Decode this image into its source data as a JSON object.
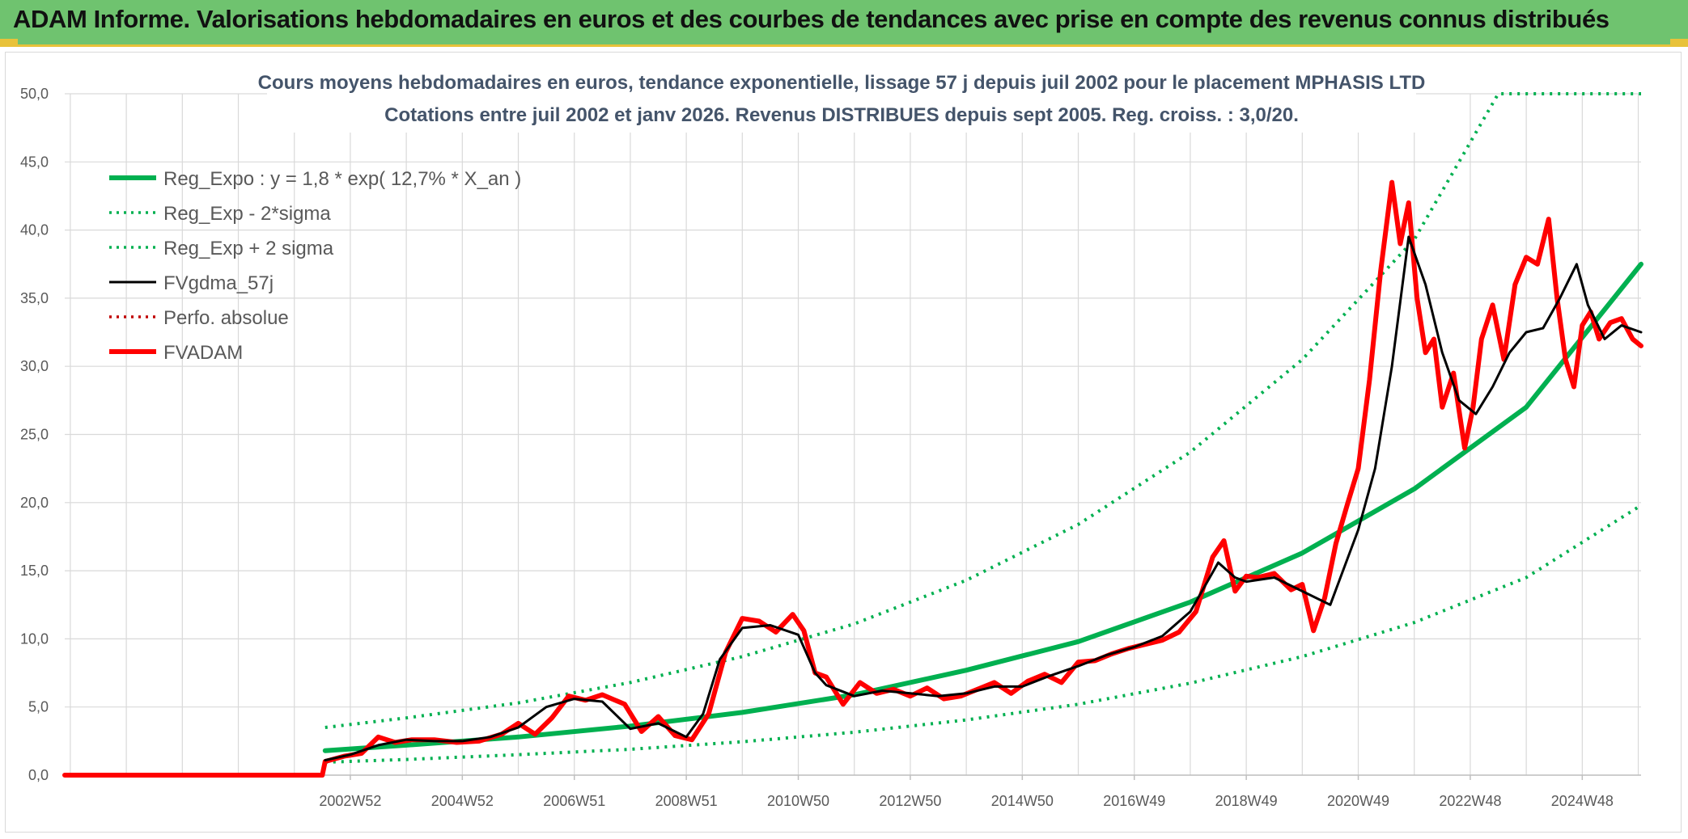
{
  "banner": {
    "title": "ADAM Informe. Valorisations hebdomadaires en euros et des courbes de tendances avec prise en compte des revenus connus distribués"
  },
  "colors": {
    "banner_bg": "#6fc36f",
    "banner_accent": "#e8c23a",
    "reg_expo": "#00b050",
    "sigma": "#00b050",
    "fvgdma": "#000000",
    "perfo": "#c00000",
    "fvadam": "#ff0000",
    "grid": "#d9d9d9"
  },
  "chart_data": {
    "type": "line",
    "title": "Cours moyens hebdomadaires en euros, tendance exponentielle, lissage 57 j depuis juil 2002 pour le placement MPHASIS LTD",
    "subtitle": "Cotations entre juil 2002 et janv 2026. Revenus DISTRIBUES depuis sept 2005. Reg. croiss. : 3,0/20.",
    "xlabel": "",
    "ylabel": "",
    "xlim": [
      1997.9,
      2026.05
    ],
    "ylim": [
      0,
      50
    ],
    "y_ticks": [
      "0,0",
      "5,0",
      "10,0",
      "15,0",
      "20,0",
      "25,0",
      "30,0",
      "35,0",
      "40,0",
      "45,0",
      "50,0"
    ],
    "x_ticks": [
      {
        "label": "2002W52",
        "x": 2003.0
      },
      {
        "label": "2004W52",
        "x": 2005.0
      },
      {
        "label": "2006W51",
        "x": 2007.0
      },
      {
        "label": "2008W51",
        "x": 2009.0
      },
      {
        "label": "2010W50",
        "x": 2011.0
      },
      {
        "label": "2012W50",
        "x": 2013.0
      },
      {
        "label": "2014W50",
        "x": 2015.0
      },
      {
        "label": "2016W49",
        "x": 2017.0
      },
      {
        "label": "2018W49",
        "x": 2019.0
      },
      {
        "label": "2020W49",
        "x": 2021.0
      },
      {
        "label": "2022W48",
        "x": 2023.0
      },
      {
        "label": "2024W48",
        "x": 2025.0
      }
    ],
    "legend": {
      "position": "top-left",
      "entries": [
        {
          "name": "Reg_Expo : y = 1,8 * exp( 12,7% *  X_an )",
          "style": "solid-thick",
          "color": "#00b050"
        },
        {
          "name": "Reg_Exp - 2*sigma",
          "style": "dotted",
          "color": "#00b050"
        },
        {
          "name": "Reg_Exp + 2 sigma",
          "style": "dotted",
          "color": "#00b050"
        },
        {
          "name": "FVgdma_57j",
          "style": "solid",
          "color": "#000000"
        },
        {
          "name": "Perfo. absolue",
          "style": "dotted",
          "color": "#c00000"
        },
        {
          "name": "FVADAM",
          "style": "solid-thick",
          "color": "#ff0000"
        }
      ]
    },
    "series": [
      {
        "name": "Reg_Expo : y = 1,8 * exp( 12,7% *  X_an )",
        "x": [
          2002.55,
          2004,
          2006,
          2008,
          2010,
          2012,
          2014,
          2016,
          2018,
          2020,
          2022,
          2024,
          2026.05
        ],
        "values": [
          1.8,
          2.2,
          2.8,
          3.6,
          4.6,
          5.9,
          7.7,
          9.8,
          12.7,
          16.3,
          21.0,
          27.0,
          37.5
        ]
      },
      {
        "name": "Reg_Exp - 2*sigma",
        "x": [
          2002.55,
          2004,
          2006,
          2008,
          2010,
          2012,
          2014,
          2016,
          2018,
          2020,
          2022,
          2024,
          2026.05
        ],
        "values": [
          0.95,
          1.15,
          1.5,
          1.9,
          2.45,
          3.15,
          4.05,
          5.2,
          6.75,
          8.7,
          11.2,
          14.5,
          19.8
        ]
      },
      {
        "name": "Reg_Exp + 2 sigma",
        "x": [
          2002.55,
          2004,
          2006,
          2008,
          2010,
          2012,
          2014,
          2016,
          2018,
          2020,
          2022,
          2023.5,
          2024,
          2026.05
        ],
        "values": [
          3.5,
          4.2,
          5.3,
          6.8,
          8.7,
          11.1,
          14.3,
          18.4,
          23.7,
          30.5,
          39.3,
          50.0,
          50.0,
          50.0
        ]
      },
      {
        "name": "FVgdma_57j",
        "x": [
          2002.55,
          2003,
          2003.5,
          2004,
          2004.5,
          2005,
          2005.5,
          2006,
          2006.5,
          2007,
          2007.5,
          2008,
          2008.5,
          2009,
          2009.3,
          2009.6,
          2010,
          2010.5,
          2011,
          2011.3,
          2011.5,
          2012,
          2012.5,
          2013,
          2013.5,
          2014,
          2014.5,
          2015,
          2015.5,
          2016,
          2016.5,
          2017,
          2017.5,
          2018,
          2018.5,
          2018.8,
          2019,
          2019.5,
          2020,
          2020.5,
          2021,
          2021.3,
          2021.6,
          2021.9,
          2022.2,
          2022.5,
          2022.8,
          2023.1,
          2023.4,
          2023.7,
          2024,
          2024.3,
          2024.6,
          2024.9,
          2025.1,
          2025.4,
          2025.7,
          2026.05
        ],
        "values": [
          1.1,
          1.5,
          2.2,
          2.6,
          2.5,
          2.5,
          2.8,
          3.5,
          5.0,
          5.6,
          5.4,
          3.4,
          3.8,
          2.8,
          4.5,
          8.5,
          10.8,
          11.0,
          10.3,
          7.5,
          6.6,
          5.8,
          6.2,
          6.0,
          5.8,
          6.0,
          6.5,
          6.5,
          7.3,
          8.0,
          8.8,
          9.4,
          10.2,
          12.0,
          15.6,
          14.5,
          14.2,
          14.5,
          13.5,
          12.5,
          18.0,
          22.5,
          30.0,
          39.5,
          36.0,
          31.0,
          27.5,
          26.5,
          28.5,
          31.0,
          32.5,
          32.8,
          35.0,
          37.5,
          34.5,
          32.0,
          33.0,
          32.5
        ]
      },
      {
        "name": "FVADAM",
        "x": [
          1997.9,
          2002.5,
          2002.55,
          2002.9,
          2003.2,
          2003.5,
          2003.8,
          2004.1,
          2004.5,
          2004.9,
          2005.3,
          2005.7,
          2006.0,
          2006.3,
          2006.6,
          2006.9,
          2007.2,
          2007.5,
          2007.9,
          2008.2,
          2008.5,
          2008.8,
          2009.1,
          2009.4,
          2009.7,
          2010.0,
          2010.3,
          2010.6,
          2010.9,
          2011.1,
          2011.3,
          2011.5,
          2011.8,
          2012.1,
          2012.4,
          2012.7,
          2013.0,
          2013.3,
          2013.6,
          2013.9,
          2014.2,
          2014.5,
          2014.8,
          2015.1,
          2015.4,
          2015.7,
          2016.0,
          2016.3,
          2016.6,
          2016.9,
          2017.2,
          2017.5,
          2017.8,
          2018.1,
          2018.4,
          2018.6,
          2018.8,
          2019.0,
          2019.2,
          2019.5,
          2019.8,
          2020.0,
          2020.2,
          2020.4,
          2020.6,
          2020.8,
          2021.0,
          2021.2,
          2021.4,
          2021.6,
          2021.75,
          2021.9,
          2022.05,
          2022.2,
          2022.35,
          2022.5,
          2022.7,
          2022.9,
          2023.05,
          2023.2,
          2023.4,
          2023.6,
          2023.8,
          2024.0,
          2024.2,
          2024.4,
          2024.55,
          2024.7,
          2024.85,
          2025.0,
          2025.15,
          2025.3,
          2025.5,
          2025.7,
          2025.9,
          2026.05
        ],
        "values": [
          0.0,
          0.0,
          1.0,
          1.4,
          1.6,
          2.8,
          2.4,
          2.6,
          2.6,
          2.4,
          2.5,
          3.0,
          3.8,
          3.0,
          4.2,
          5.8,
          5.5,
          5.9,
          5.2,
          3.2,
          4.3,
          2.9,
          2.6,
          4.5,
          9.0,
          11.5,
          11.3,
          10.5,
          11.8,
          10.6,
          7.5,
          7.2,
          5.2,
          6.8,
          6.0,
          6.3,
          5.8,
          6.4,
          5.6,
          5.8,
          6.3,
          6.8,
          6.0,
          6.9,
          7.4,
          6.8,
          8.3,
          8.4,
          8.9,
          9.3,
          9.6,
          9.9,
          10.5,
          12.0,
          16.0,
          17.2,
          13.5,
          14.6,
          14.5,
          14.8,
          13.6,
          14.0,
          10.6,
          13.0,
          17.0,
          19.8,
          22.5,
          29.0,
          37.0,
          43.5,
          39.0,
          42.0,
          35.0,
          31.0,
          32.0,
          27.0,
          29.5,
          24.0,
          27.0,
          32.0,
          34.5,
          30.5,
          36.0,
          38.0,
          37.5,
          40.8,
          35.0,
          30.5,
          28.5,
          33.0,
          34.0,
          32.0,
          33.2,
          33.5,
          32.0,
          31.5
        ]
      }
    ]
  }
}
